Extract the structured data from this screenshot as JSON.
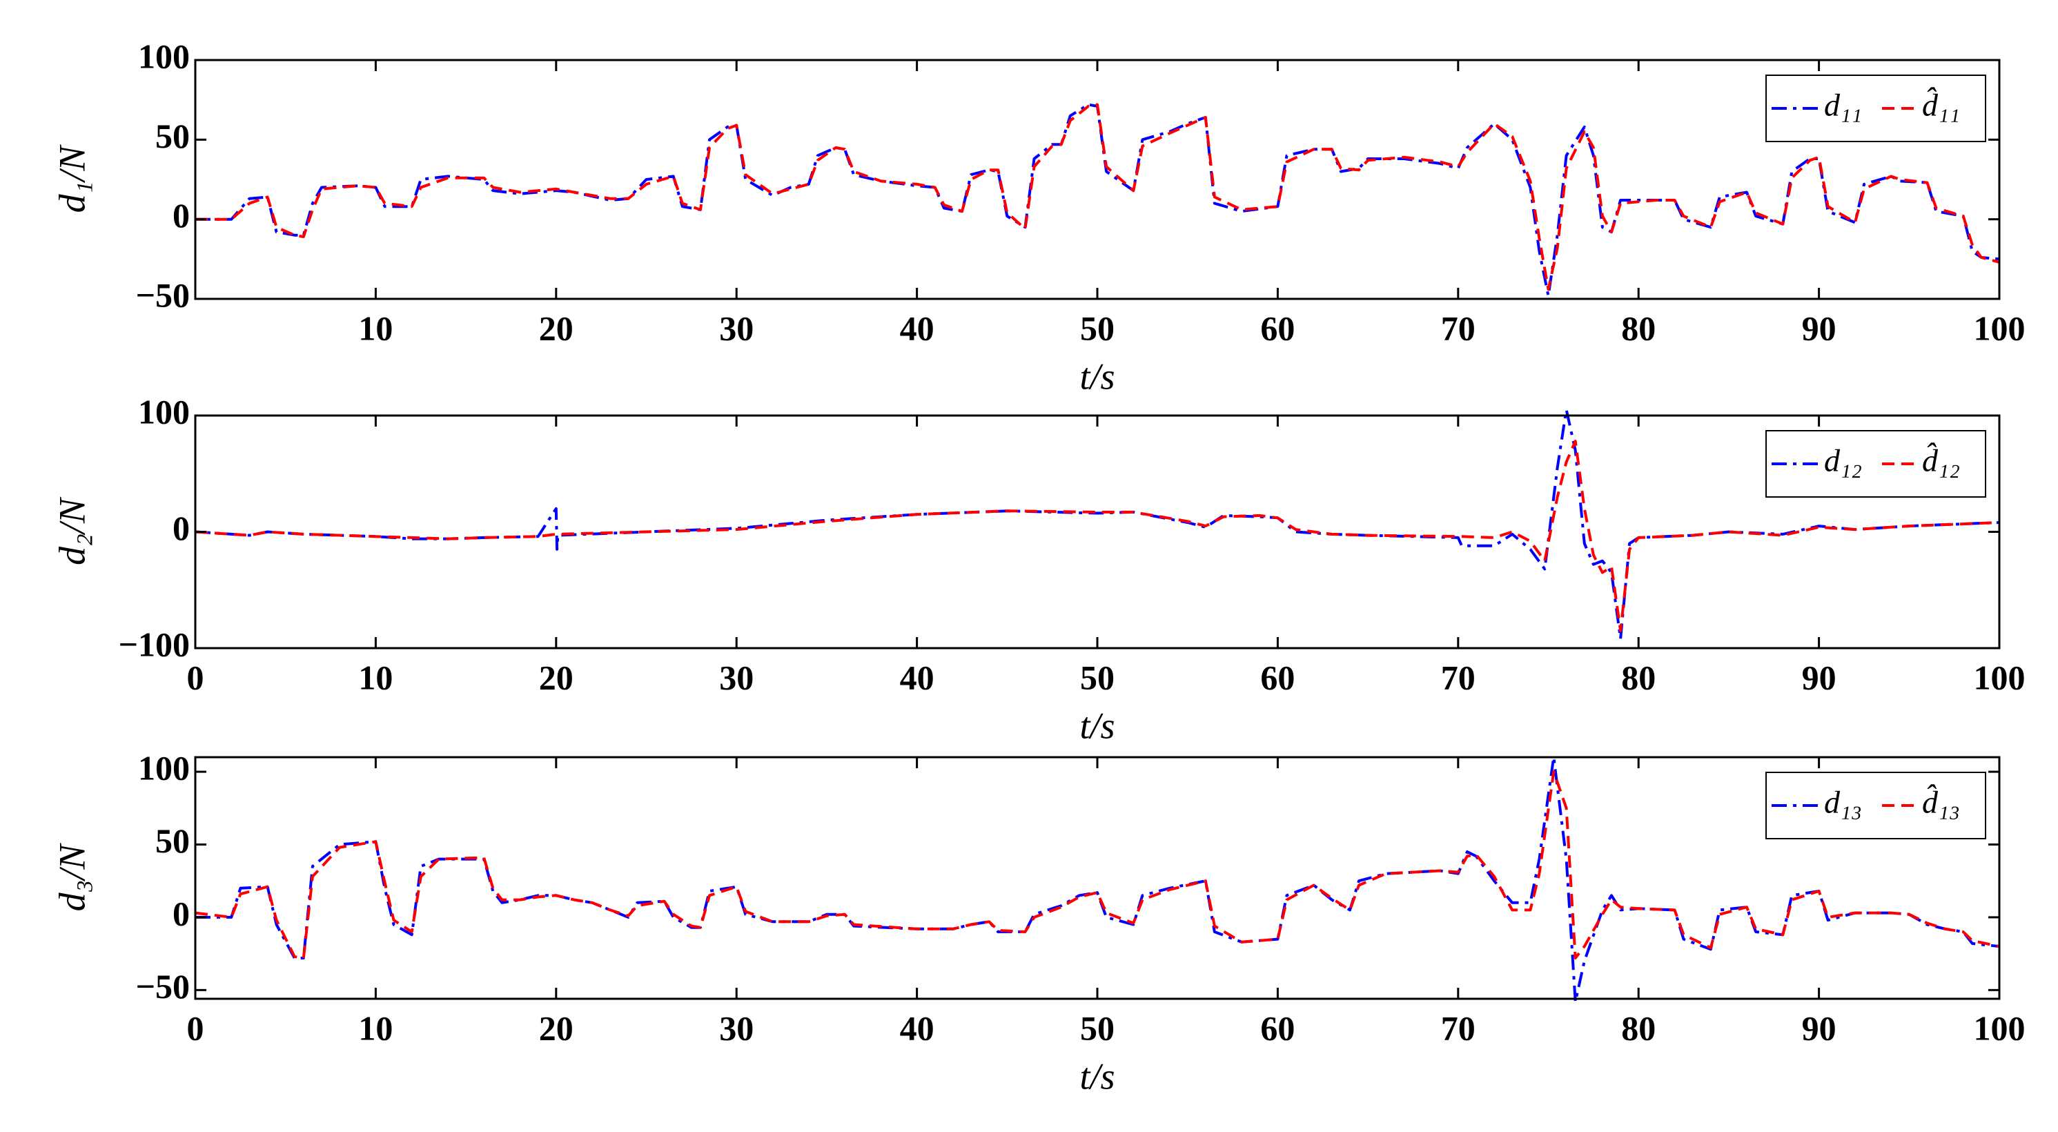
{
  "chart_data": [
    {
      "type": "line",
      "ylabel": "d₁/N",
      "xlabel": "t/s",
      "xlim": [
        0,
        100
      ],
      "xticks": [
        10,
        20,
        30,
        40,
        50,
        60,
        70,
        80,
        90,
        100
      ],
      "ylim": [
        -50,
        100
      ],
      "yticks": [
        {
          "value": -50,
          "label": "−50"
        },
        0,
        50,
        100
      ],
      "legend": "upper right",
      "x": [
        0,
        2,
        3,
        4,
        4.5,
        5.5,
        6,
        6.5,
        7,
        9,
        10,
        10.5,
        12,
        12.5,
        14,
        16,
        16.5,
        18,
        20,
        21,
        23,
        24,
        25,
        26.5,
        27,
        28,
        28.5,
        29.5,
        30,
        30.5,
        32,
        33,
        34,
        34.5,
        35.5,
        36,
        36.5,
        38,
        40,
        41,
        41.5,
        42.5,
        43,
        44,
        44.5,
        45,
        46,
        46.5,
        47.5,
        48,
        48.5,
        49.5,
        50,
        50.5,
        52,
        52.5,
        54,
        55,
        56,
        56.5,
        58,
        60,
        60.5,
        62,
        63,
        63.5,
        64.5,
        65,
        67,
        69,
        70,
        70.5,
        72,
        73,
        74,
        74.5,
        75,
        75.5,
        76,
        77,
        77.5,
        78,
        78.5,
        79,
        81,
        82,
        82.5,
        84,
        84.5,
        86,
        86.5,
        88,
        88.5,
        89.5,
        90,
        90.5,
        92,
        92.5,
        94,
        94.5,
        96,
        96.5,
        98,
        98.5,
        99,
        100
      ],
      "series": [
        {
          "name": "d₁₁",
          "color": "#0000ff",
          "linestyle": "-.",
          "values": [
            0,
            0,
            13,
            14,
            -8,
            -10,
            -10,
            10,
            20,
            21,
            20,
            8,
            8,
            25,
            27,
            25,
            18,
            16,
            18,
            17,
            12,
            13,
            25,
            27,
            8,
            6,
            50,
            58,
            59,
            25,
            15,
            20,
            22,
            40,
            45,
            44,
            28,
            24,
            21,
            20,
            7,
            5,
            28,
            31,
            30,
            2,
            -5,
            38,
            47,
            47,
            65,
            72,
            71,
            30,
            18,
            50,
            55,
            60,
            64,
            10,
            5,
            8,
            40,
            44,
            44,
            30,
            32,
            38,
            38,
            35,
            32,
            45,
            60,
            50,
            20,
            -20,
            -48,
            -10,
            40,
            58,
            40,
            -5,
            -8,
            12,
            12,
            12,
            0,
            -5,
            14,
            17,
            2,
            -3,
            30,
            38,
            38,
            5,
            -2,
            22,
            27,
            24,
            23,
            5,
            2,
            -20,
            -24,
            -25
          ]
        },
        {
          "name": "d̂₁₁",
          "color": "#ff0000",
          "linestyle": "--",
          "values": [
            0,
            0,
            10,
            14,
            -5,
            -10,
            -11,
            6,
            19,
            21,
            20,
            10,
            8,
            20,
            26,
            26,
            20,
            17,
            19,
            17,
            13,
            13,
            22,
            27,
            10,
            6,
            45,
            57,
            59,
            28,
            16,
            19,
            22,
            37,
            45,
            44,
            30,
            24,
            22,
            20,
            9,
            5,
            25,
            31,
            31,
            4,
            -6,
            33,
            46,
            47,
            62,
            71,
            72,
            33,
            18,
            46,
            54,
            59,
            64,
            14,
            6,
            8,
            36,
            44,
            44,
            32,
            31,
            37,
            39,
            36,
            33,
            42,
            60,
            52,
            24,
            -12,
            -44,
            -18,
            32,
            55,
            45,
            2,
            -8,
            10,
            12,
            12,
            2,
            -5,
            11,
            17,
            4,
            -3,
            26,
            37,
            39,
            8,
            -2,
            19,
            27,
            25,
            23,
            7,
            2,
            -16,
            -24,
            -27
          ]
        }
      ]
    },
    {
      "type": "line",
      "ylabel": "d₂/N",
      "xlabel": "t/s",
      "xlim": [
        0,
        100
      ],
      "xticks": [
        0,
        10,
        20,
        30,
        40,
        50,
        60,
        70,
        80,
        90,
        100
      ],
      "ylim": [
        -100,
        100
      ],
      "yticks": [
        {
          "value": -100,
          "label": "−100"
        },
        0,
        100
      ],
      "legend": "upper right",
      "x": [
        0,
        3,
        4,
        6,
        10,
        12,
        14,
        16,
        19,
        20,
        20.05,
        20.1,
        25,
        30,
        35,
        40,
        45,
        50,
        52,
        55,
        56,
        57,
        59,
        60,
        61,
        63,
        65,
        70,
        70.2,
        72,
        73,
        74,
        74.8,
        75.5,
        76,
        76.5,
        77,
        77.5,
        78,
        78.5,
        79,
        79.5,
        80,
        83,
        85,
        88,
        90,
        92,
        95,
        100
      ],
      "series": [
        {
          "name": "d₁₂",
          "color": "#0000ff",
          "linestyle": "-.",
          "values": [
            0,
            -3,
            0,
            -2,
            -4,
            -6,
            -6,
            -5,
            -4,
            20,
            -15,
            -3,
            0,
            3,
            10,
            15,
            18,
            16,
            17,
            8,
            4,
            14,
            13,
            12,
            0,
            -2,
            -3,
            -5,
            -12,
            -12,
            -2,
            -15,
            -32,
            55,
            105,
            70,
            -10,
            -28,
            -25,
            -35,
            -92,
            -10,
            -5,
            -3,
            0,
            -2,
            5,
            2,
            5,
            8
          ]
        },
        {
          "name": "d̂₁₂",
          "color": "#ff0000",
          "linestyle": "--",
          "values": [
            0,
            -3,
            0,
            -2,
            -4,
            -5,
            -6,
            -5,
            -4,
            -2,
            -2,
            -2,
            0,
            2,
            9,
            15,
            18,
            17,
            17,
            9,
            5,
            13,
            14,
            12,
            2,
            -2,
            -3,
            -4,
            -4,
            -5,
            0,
            -8,
            -25,
            30,
            60,
            78,
            20,
            -20,
            -35,
            -30,
            -85,
            -15,
            -5,
            -3,
            0,
            -3,
            4,
            2,
            5,
            8
          ]
        }
      ]
    },
    {
      "type": "line",
      "ylabel": "d₃/N",
      "xlabel": "t/s",
      "xlim": [
        0,
        100
      ],
      "xticks": [
        0,
        10,
        20,
        30,
        40,
        50,
        60,
        70,
        80,
        90,
        100
      ],
      "ylim": [
        -56,
        110
      ],
      "yticks": [
        {
          "value": -50,
          "label": "−50"
        },
        0,
        50,
        100
      ],
      "legend": "upper right",
      "x": [
        0,
        2,
        2.5,
        4,
        4.5,
        5.5,
        6,
        6.5,
        8,
        10,
        10.5,
        11,
        12,
        12.5,
        13.5,
        16,
        16.5,
        17,
        18,
        19,
        20,
        21,
        22,
        23,
        24,
        24.5,
        26,
        26.5,
        27.5,
        28,
        28.5,
        30,
        30.5,
        32,
        34,
        35,
        36,
        36.5,
        40,
        42,
        43,
        44,
        44.5,
        46,
        46.5,
        48,
        49,
        50,
        50.5,
        52,
        52.5,
        54,
        56,
        56.5,
        58,
        60,
        60.5,
        62,
        63,
        64,
        64.5,
        66,
        69,
        70,
        70.5,
        71,
        72,
        73,
        74,
        74.5,
        75.3,
        76,
        76.5,
        77,
        78,
        78.5,
        79,
        80,
        82,
        82.5,
        84,
        84.5,
        86,
        86.5,
        88,
        88.5,
        90,
        90.5,
        92,
        94,
        95,
        96,
        97,
        98,
        98.5,
        100
      ],
      "series": [
        {
          "name": "d₁₃",
          "color": "#0000ff",
          "linestyle": "-.",
          "values": [
            0,
            0,
            20,
            21,
            -5,
            -28,
            -28,
            35,
            50,
            52,
            20,
            -5,
            -12,
            35,
            40,
            40,
            18,
            10,
            12,
            15,
            15,
            12,
            10,
            5,
            0,
            10,
            11,
            0,
            -7,
            -7,
            18,
            21,
            2,
            -3,
            -3,
            2,
            2,
            -6,
            -8,
            -8,
            -5,
            -3,
            -10,
            -10,
            2,
            8,
            15,
            17,
            0,
            -5,
            15,
            20,
            25,
            -10,
            -17,
            -15,
            15,
            22,
            12,
            5,
            25,
            30,
            32,
            30,
            45,
            42,
            25,
            10,
            10,
            40,
            110,
            40,
            -58,
            -30,
            5,
            15,
            5,
            6,
            5,
            -15,
            -22,
            5,
            7,
            -10,
            -12,
            15,
            18,
            -2,
            3,
            3,
            2,
            -5,
            -8,
            -10,
            -18,
            -20
          ]
        },
        {
          "name": "d̂₁₃",
          "color": "#ff0000",
          "linestyle": "--",
          "values": [
            3,
            0,
            16,
            21,
            -2,
            -27,
            -28,
            28,
            48,
            52,
            24,
            -2,
            -10,
            28,
            40,
            41,
            20,
            12,
            12,
            14,
            15,
            12,
            10,
            5,
            1,
            8,
            11,
            2,
            -6,
            -7,
            15,
            21,
            4,
            -3,
            -3,
            1,
            2,
            -5,
            -8,
            -8,
            -5,
            -3,
            -9,
            -10,
            0,
            7,
            14,
            17,
            3,
            -4,
            12,
            19,
            25,
            -6,
            -17,
            -15,
            12,
            22,
            13,
            5,
            22,
            30,
            32,
            31,
            42,
            43,
            28,
            5,
            5,
            30,
            100,
            75,
            -28,
            -20,
            2,
            12,
            7,
            6,
            5,
            -12,
            -21,
            2,
            7,
            -8,
            -12,
            12,
            18,
            0,
            3,
            3,
            2,
            -4,
            -8,
            -10,
            -16,
            -20
          ]
        }
      ]
    }
  ]
}
